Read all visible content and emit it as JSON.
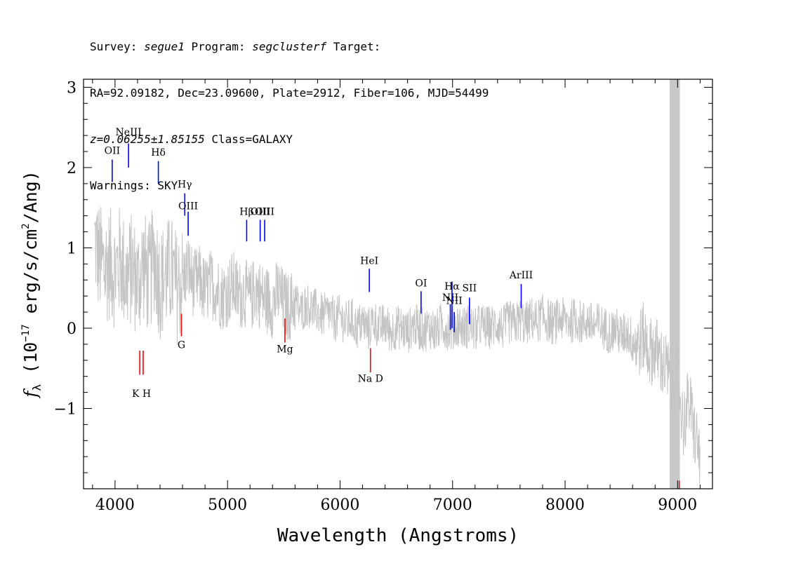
{
  "header": {
    "survey_label": "Survey: ",
    "survey": "segue1",
    "program_label": " Program: ",
    "program": "segclusterf",
    "target_label": " Target:",
    "coords": "RA=92.09182, Dec=23.09600, Plate=2912, Fiber=106, MJD=54499",
    "redshift": "z=0.06255±1.85155",
    "class": " Class=GALAXY",
    "warnings": "Warnings: SKY"
  },
  "chart_data": {
    "type": "line",
    "xlabel": "Wavelength (Angstroms)",
    "ylabel_prefix": "f",
    "ylabel_sub": "λ",
    "ylabel_text1": " (10",
    "ylabel_exp1": "−17",
    "ylabel_text2": " erg/s/cm",
    "ylabel_exp2": "2",
    "ylabel_text3": "/Ang)",
    "xlim": [
      3720,
      9310
    ],
    "ylim": [
      -2.0,
      3.1
    ],
    "xticks": [
      4000,
      5000,
      6000,
      7000,
      8000,
      9000
    ],
    "xtick_labels": [
      "4000",
      "5000",
      "6000",
      "7000",
      "8000",
      "9000"
    ],
    "yticks": [
      -1,
      0,
      1,
      2,
      3
    ],
    "ytick_labels": [
      "−1",
      "0",
      "1",
      "2",
      "3"
    ],
    "grid": false,
    "masked_region": [
      8930,
      9020
    ],
    "series": [
      {
        "role": "smoothed-flux",
        "color": "#000000",
        "x": [
          3820,
          3850,
          3900,
          3950,
          4000,
          4050,
          4100,
          4150,
          4200,
          4250,
          4300,
          4350,
          4400,
          4450,
          4500,
          4550,
          4600,
          4650,
          4700,
          4750,
          4800,
          4850,
          4900,
          4950,
          5000,
          5050,
          5100,
          5150,
          5200,
          5250,
          5300,
          5350,
          5400,
          5450,
          5500,
          5550,
          5600,
          5650,
          5700,
          5750,
          5800,
          5850,
          5900,
          5950,
          6000,
          6050,
          6100,
          6150,
          6200,
          6250,
          6300,
          6350,
          6400,
          6450,
          6500,
          6550,
          6600,
          6650,
          6700,
          6750,
          6800,
          6850,
          6900,
          6950,
          7000,
          7050,
          7100,
          7150,
          7200,
          7250,
          7300,
          7350,
          7400,
          7450,
          7500,
          7550,
          7600,
          7650,
          7700,
          7750,
          7800,
          7850,
          7900,
          7950,
          8000,
          8050,
          8100,
          8150,
          8200,
          8250,
          8300,
          8350,
          8400,
          8450,
          8500,
          8550,
          8600,
          8650,
          8700,
          8750,
          8800,
          8850,
          8900,
          8950,
          9000,
          9050,
          9100,
          9150,
          9200
        ],
        "y": [
          1.1,
          0.9,
          0.75,
          0.8,
          0.7,
          0.85,
          0.6,
          0.75,
          0.55,
          0.8,
          0.6,
          0.9,
          0.55,
          0.65,
          0.7,
          0.5,
          0.6,
          0.75,
          0.55,
          0.6,
          0.45,
          0.55,
          0.5,
          0.4,
          0.45,
          0.55,
          0.4,
          0.45,
          0.35,
          0.5,
          0.4,
          0.35,
          0.3,
          0.45,
          0.3,
          0.25,
          0.35,
          0.2,
          0.3,
          0.25,
          0.2,
          0.15,
          0.2,
          0.1,
          0.15,
          0.05,
          0.12,
          0.0,
          0.08,
          -0.02,
          0.1,
          0.0,
          0.05,
          -0.05,
          0.02,
          0.0,
          -0.05,
          0.05,
          0.0,
          -0.03,
          0.02,
          -0.05,
          0.05,
          0.0,
          -0.02,
          0.05,
          0.0,
          0.03,
          -0.03,
          0.05,
          0.0,
          0.02,
          0.06,
          0.0,
          0.08,
          0.05,
          0.1,
          0.05,
          0.12,
          0.08,
          0.15,
          0.1,
          0.05,
          0.12,
          0.1,
          0.08,
          0.12,
          0.05,
          0.1,
          0.02,
          0.05,
          0.0,
          -0.05,
          0.0,
          -0.1,
          -0.05,
          -0.15,
          -0.2,
          -0.1,
          -0.3,
          -0.25,
          -0.4,
          -0.5,
          -0.7,
          -0.6,
          -1.2,
          -0.9,
          -1.3,
          -1.6
        ]
      }
    ],
    "emission_lines": [
      {
        "label": "OII",
        "x": 3975,
        "y_top": 2.1,
        "y_bottom": 1.82,
        "label_y": 2.17
      },
      {
        "label": "NeIII",
        "x": 4120,
        "y_top": 2.3,
        "y_bottom": 2.0,
        "label_y": 2.4
      },
      {
        "label": "Hδ",
        "x": 4385,
        "y_top": 2.08,
        "y_bottom": 1.8,
        "label_y": 2.15
      },
      {
        "label": "Hγ",
        "x": 4620,
        "y_top": 1.68,
        "y_bottom": 1.4,
        "label_y": 1.75
      },
      {
        "label": "OIII",
        "x": 4650,
        "y_top": 1.45,
        "y_bottom": 1.15,
        "label_y": 1.48
      },
      {
        "label": "Hβ",
        "x": 5170,
        "y_top": 1.35,
        "y_bottom": 1.08,
        "label_y": 1.41
      },
      {
        "label": "OIII",
        "x": 5290,
        "y_top": 1.35,
        "y_bottom": 1.08,
        "label_y": 1.41
      },
      {
        "label": "OIII",
        "x": 5330,
        "y_top": 1.35,
        "y_bottom": 1.08,
        "label_y": 1.41
      },
      {
        "label": "HeI",
        "x": 6260,
        "y_top": 0.74,
        "y_bottom": 0.45,
        "label_y": 0.8
      },
      {
        "label": "OI",
        "x": 6720,
        "y_top": 0.46,
        "y_bottom": 0.18,
        "label_y": 0.52
      },
      {
        "label": "NII",
        "x": 6980,
        "y_top": 0.3,
        "y_bottom": -0.02,
        "label_y": 0.34
      },
      {
        "label": "Hα",
        "x": 6995,
        "y_top": 0.58,
        "y_bottom": 0.0,
        "label_y": 0.48
      },
      {
        "label": "NII",
        "x": 7015,
        "y_top": 0.2,
        "y_bottom": -0.05,
        "label_y": 0.3
      },
      {
        "label": "SII",
        "x": 7150,
        "y_top": 0.38,
        "y_bottom": 0.05,
        "label_y": 0.46
      },
      {
        "label": "ArIII",
        "x": 7610,
        "y_top": 0.55,
        "y_bottom": 0.25,
        "label_y": 0.62
      }
    ],
    "absorption_lines": [
      {
        "label": "G",
        "x": 4590,
        "y_top": 0.18,
        "y_bottom": -0.1,
        "label_y": -0.25
      },
      {
        "label": "Mg",
        "x": 5510,
        "y_top": 0.12,
        "y_bottom": -0.18,
        "label_y": -0.3
      },
      {
        "label": "Na D",
        "x": 6270,
        "y_top": -0.25,
        "y_bottom": -0.55,
        "label_y": -0.67
      },
      {
        "label": "",
        "x": 4220,
        "y_top": -0.28,
        "y_bottom": -0.58,
        "label_y": -0.7
      },
      {
        "label": "",
        "x": 4250,
        "y_top": -0.28,
        "y_bottom": -0.58,
        "label_y": -0.7
      },
      {
        "label": "",
        "x": 9015,
        "y_top": -1.9,
        "y_bottom": -2.0,
        "label_y": -2.0
      }
    ],
    "kh_label": "K H",
    "kh_x": 4235,
    "kh_y": -0.7
  },
  "colors": {
    "raw_flux": "#c4c4c4",
    "smoothed_flux": "#000000",
    "emission_line": "#0000ff",
    "absorption_line": "#ff0000",
    "mask": "#c8c8c8"
  }
}
